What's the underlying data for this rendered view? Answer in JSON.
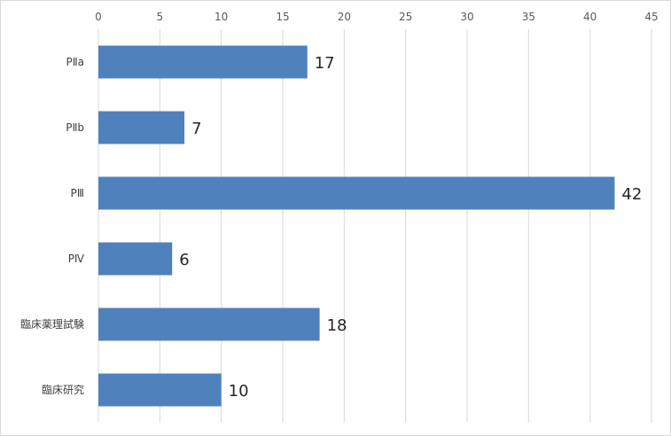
{
  "chart_data": {
    "type": "bar",
    "orientation": "horizontal",
    "title": "",
    "xlabel": "",
    "ylabel": "",
    "categories": [
      "PⅡa",
      "PⅡb",
      "PⅢ",
      "PⅣ",
      "臨床薬理試験",
      "臨床研究"
    ],
    "values": [
      17,
      7,
      42,
      6,
      18,
      10
    ],
    "xlim": [
      0,
      45
    ],
    "x_ticks": [
      0,
      5,
      10,
      15,
      20,
      25,
      30,
      35,
      40,
      45
    ],
    "x_axis_position": "top",
    "grid": true,
    "legend": "none",
    "data_labels": true,
    "bar_color": "#4f81bd",
    "grid_color": "#d9d9d9"
  }
}
